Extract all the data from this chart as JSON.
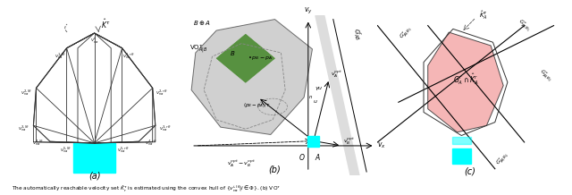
{
  "fig_width": 6.4,
  "fig_height": 2.18,
  "dpi": 100,
  "bg_color": "#ffffff",
  "cyan_color": "#00FFFF",
  "gray_fill": "#C8C8C8",
  "green_fill": "#4A8A30",
  "pink_fill": "#F4AAAA",
  "label_a": "(a)",
  "label_b": "(b)",
  "label_c": "(c)",
  "caption": "The automatically reachable velocity set $\\hat{K}^{\\tau}_r$ is estimated using the convex hull of $\\{v^{i,l\\theta}_{na}|i \\in \\Phi\\}$. (b) VO$^{\\tau}$"
}
